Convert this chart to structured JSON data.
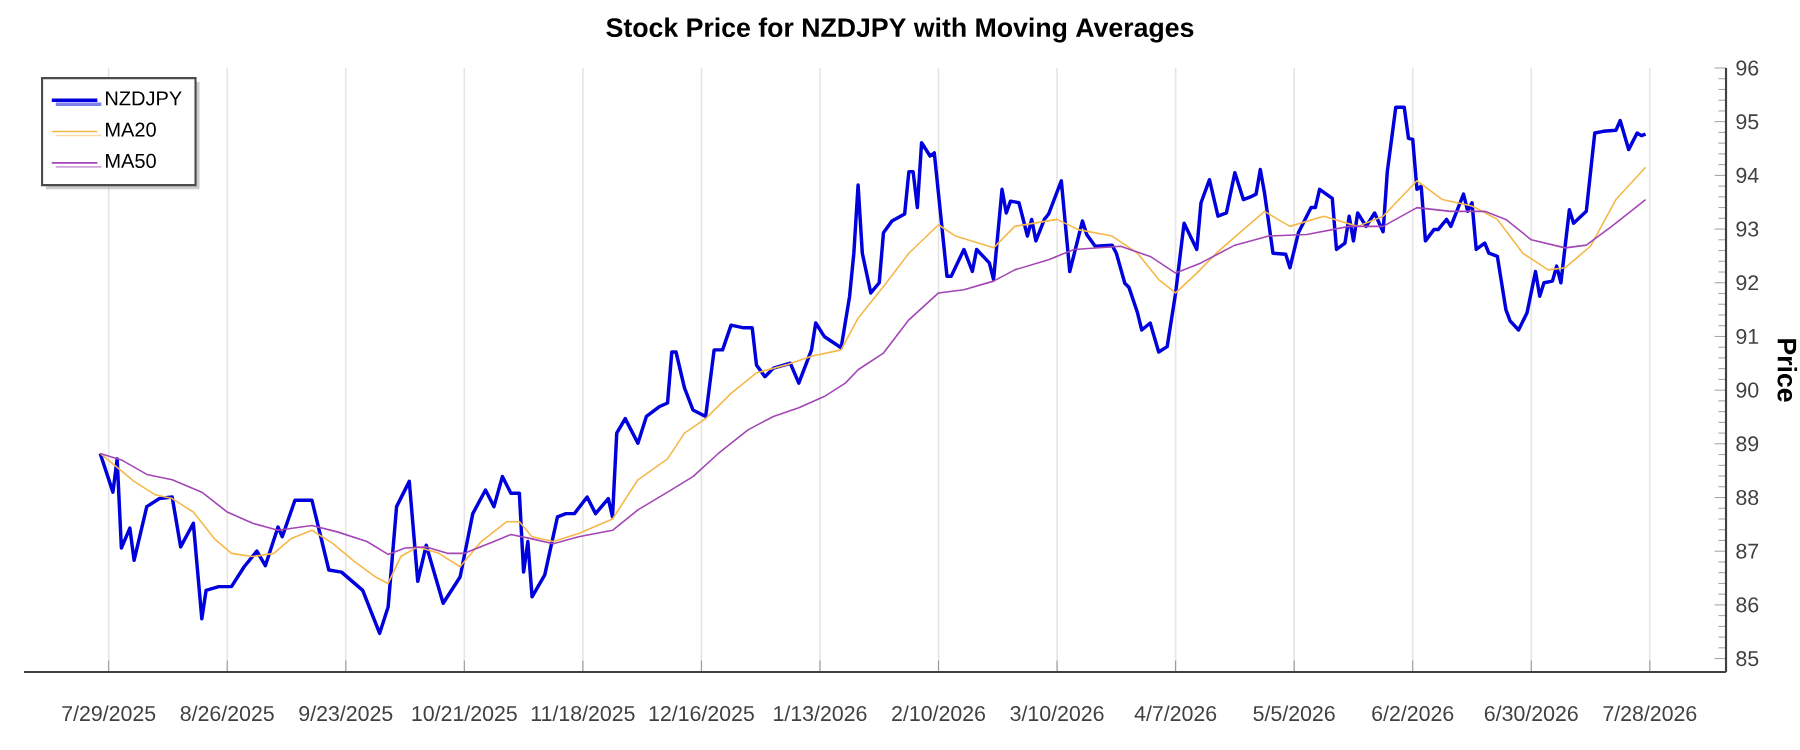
{
  "chart_data": {
    "type": "line",
    "title": "Stock Price for NZDJPY with Moving Averages",
    "ylabel": "Price",
    "xlim": [
      "2025-07-09",
      "2026-08-15"
    ],
    "ylim": [
      84.75,
      96
    ],
    "xticks": [
      {
        "value": "2025-07-29",
        "label": "7/29/2025"
      },
      {
        "value": "2025-08-26",
        "label": "8/26/2025"
      },
      {
        "value": "2025-09-23",
        "label": "9/23/2025"
      },
      {
        "value": "2025-10-21",
        "label": "10/21/2025"
      },
      {
        "value": "2025-11-18",
        "label": "11/18/2025"
      },
      {
        "value": "2025-12-16",
        "label": "12/16/2025"
      },
      {
        "value": "2026-01-13",
        "label": "1/13/2026"
      },
      {
        "value": "2026-02-10",
        "label": "2/10/2026"
      },
      {
        "value": "2026-03-10",
        "label": "3/10/2026"
      },
      {
        "value": "2026-04-07",
        "label": "4/7/2026"
      },
      {
        "value": "2026-05-05",
        "label": "5/5/2026"
      },
      {
        "value": "2026-06-02",
        "label": "6/2/2026"
      },
      {
        "value": "2026-06-30",
        "label": "6/30/2026"
      },
      {
        "value": "2026-07-28",
        "label": "7/28/2026"
      }
    ],
    "yticks": [
      85,
      86,
      87,
      88,
      89,
      90,
      91,
      92,
      93,
      94,
      95,
      96
    ],
    "grid": "x",
    "legend": "top left",
    "series": [
      {
        "name": "NZDJPY",
        "color": "#0000dd",
        "x": [
          "2025-07-27",
          "2025-07-30",
          "2025-07-31",
          "2025-08-01",
          "2025-08-03",
          "2025-08-04",
          "2025-08-07",
          "2025-08-10",
          "2025-08-13",
          "2025-08-15",
          "2025-08-18",
          "2025-08-20",
          "2025-08-21",
          "2025-08-24",
          "2025-08-27",
          "2025-08-30",
          "2025-09-02",
          "2025-09-04",
          "2025-09-07",
          "2025-09-08",
          "2025-09-11",
          "2025-09-15",
          "2025-09-19",
          "2025-09-22",
          "2025-09-27",
          "2025-10-01",
          "2025-10-03",
          "2025-10-05",
          "2025-10-08",
          "2025-10-10",
          "2025-10-12",
          "2025-10-16",
          "2025-10-20",
          "2025-10-23",
          "2025-10-26",
          "2025-10-28",
          "2025-10-30",
          "2025-11-01",
          "2025-11-03",
          "2025-11-04",
          "2025-11-05",
          "2025-11-06",
          "2025-11-09",
          "2025-11-12",
          "2025-11-14",
          "2025-11-16",
          "2025-11-19",
          "2025-11-21",
          "2025-11-24",
          "2025-11-25",
          "2025-11-26",
          "2025-11-28",
          "2025-12-01",
          "2025-12-03",
          "2025-12-06",
          "2025-12-08",
          "2025-12-09",
          "2025-12-10",
          "2025-12-12",
          "2025-12-14",
          "2025-12-17",
          "2025-12-19",
          "2025-12-21",
          "2025-12-23",
          "2025-12-26",
          "2025-12-28",
          "2025-12-29",
          "2025-12-31",
          "2026-01-02",
          "2026-01-06",
          "2026-01-08",
          "2026-01-11",
          "2026-01-12",
          "2026-01-14",
          "2026-01-18",
          "2026-01-20",
          "2026-01-21",
          "2026-01-22",
          "2026-01-23",
          "2026-01-25",
          "2026-01-27",
          "2026-01-28",
          "2026-01-30",
          "2026-02-02",
          "2026-02-03",
          "2026-02-04",
          "2026-02-05",
          "2026-02-06",
          "2026-02-08",
          "2026-02-09",
          "2026-02-12",
          "2026-02-13",
          "2026-02-16",
          "2026-02-18",
          "2026-02-19",
          "2026-02-22",
          "2026-02-23",
          "2026-02-25",
          "2026-02-26",
          "2026-02-27",
          "2026-03-01",
          "2026-03-03",
          "2026-03-04",
          "2026-03-05",
          "2026-03-07",
          "2026-03-08",
          "2026-03-11",
          "2026-03-13",
          "2026-03-16",
          "2026-03-17",
          "2026-03-19",
          "2026-03-23",
          "2026-03-24",
          "2026-03-26",
          "2026-03-27",
          "2026-03-29",
          "2026-03-30",
          "2026-04-01",
          "2026-04-03",
          "2026-04-05",
          "2026-04-07",
          "2026-04-09",
          "2026-04-12",
          "2026-04-13",
          "2026-04-15",
          "2026-04-17",
          "2026-04-19",
          "2026-04-21",
          "2026-04-23",
          "2026-04-25",
          "2026-04-26",
          "2026-04-27",
          "2026-04-28",
          "2026-04-30",
          "2026-05-03",
          "2026-05-04",
          "2026-05-06",
          "2026-05-09",
          "2026-05-10",
          "2026-05-11",
          "2026-05-14",
          "2026-05-15",
          "2026-05-17",
          "2026-05-18",
          "2026-05-19",
          "2026-05-20",
          "2026-05-22",
          "2026-05-24",
          "2026-05-26",
          "2026-05-27",
          "2026-05-29",
          "2026-05-31",
          "2026-06-01",
          "2026-06-02",
          "2026-06-03",
          "2026-06-04",
          "2026-06-05",
          "2026-06-07",
          "2026-06-08",
          "2026-06-10",
          "2026-06-11",
          "2026-06-14",
          "2026-06-15",
          "2026-06-16",
          "2026-06-17",
          "2026-06-19",
          "2026-06-20",
          "2026-06-22",
          "2026-06-24",
          "2026-06-25",
          "2026-06-27",
          "2026-06-29",
          "2026-07-01",
          "2026-07-02",
          "2026-07-03",
          "2026-07-05",
          "2026-07-06",
          "2026-07-07",
          "2026-07-09",
          "2026-07-10",
          "2026-07-13",
          "2026-07-15",
          "2026-07-17",
          "2026-07-20",
          "2026-07-21",
          "2026-07-23",
          "2026-07-25",
          "2026-07-26",
          "2026-07-27"
        ],
        "values": [
          88.82,
          88.1,
          88.72,
          87.06,
          87.43,
          86.83,
          87.83,
          87.98,
          88.01,
          87.08,
          87.52,
          85.74,
          86.27,
          86.34,
          86.34,
          86.71,
          87.0,
          86.73,
          87.45,
          87.27,
          87.95,
          87.95,
          86.65,
          86.61,
          86.27,
          85.47,
          85.96,
          87.83,
          88.3,
          86.44,
          87.11,
          86.03,
          86.52,
          87.7,
          88.14,
          87.83,
          88.39,
          88.08,
          88.08,
          86.61,
          87.18,
          86.15,
          86.56,
          87.64,
          87.7,
          87.7,
          88.01,
          87.7,
          87.98,
          87.64,
          89.2,
          89.47,
          89.01,
          89.51,
          89.69,
          89.76,
          90.71,
          90.71,
          90.04,
          89.63,
          89.51,
          90.75,
          90.75,
          91.21,
          91.16,
          91.16,
          90.47,
          90.25,
          90.41,
          90.5,
          90.13,
          90.75,
          91.25,
          91.0,
          90.79,
          91.75,
          92.55,
          93.82,
          92.55,
          91.81,
          92.0,
          92.93,
          93.15,
          93.28,
          94.07,
          94.07,
          93.4,
          94.61,
          94.36,
          94.42,
          92.12,
          92.12,
          92.62,
          92.21,
          92.62,
          92.37,
          92.06,
          93.74,
          93.3,
          93.52,
          93.49,
          92.87,
          93.18,
          92.78,
          93.18,
          93.28,
          93.9,
          92.21,
          93.15,
          92.9,
          92.68,
          92.7,
          92.55,
          91.99,
          91.91,
          91.44,
          91.12,
          91.25,
          90.71,
          90.81,
          91.81,
          93.11,
          92.62,
          93.49,
          93.92,
          93.24,
          93.3,
          94.05,
          93.55,
          93.61,
          93.65,
          94.11,
          93.67,
          92.55,
          92.53,
          92.28,
          92.93,
          93.4,
          93.4,
          93.74,
          93.57,
          92.62,
          92.74,
          93.24,
          92.78,
          93.3,
          93.05,
          93.3,
          92.95,
          94.07,
          95.27,
          95.27,
          94.69,
          94.67,
          93.74,
          93.8,
          92.78,
          92.99,
          92.99,
          93.18,
          93.05,
          93.65,
          93.33,
          93.49,
          92.62,
          92.74,
          92.55,
          92.49,
          91.5,
          91.29,
          91.12,
          91.44,
          92.21,
          91.75,
          92.0,
          92.03,
          92.31,
          92.0,
          93.36,
          93.11,
          93.33,
          94.79,
          94.82,
          94.84,
          95.02,
          94.48,
          94.79,
          94.74,
          94.77
        ]
      },
      {
        "name": "MA20",
        "color": "#f5b84a",
        "x": [
          "2025-07-27",
          "2025-08-04",
          "2025-08-09",
          "2025-08-13",
          "2025-08-18",
          "2025-08-23",
          "2025-08-27",
          "2025-09-01",
          "2025-09-06",
          "2025-09-10",
          "2025-09-15",
          "2025-09-20",
          "2025-09-25",
          "2025-09-30",
          "2025-10-03",
          "2025-10-06",
          "2025-10-10",
          "2025-10-15",
          "2025-10-20",
          "2025-10-25",
          "2025-10-31",
          "2025-11-03",
          "2025-11-06",
          "2025-11-11",
          "2025-11-17",
          "2025-11-25",
          "2025-12-01",
          "2025-12-08",
          "2025-12-12",
          "2025-12-17",
          "2025-12-23",
          "2025-12-29",
          "2026-01-05",
          "2026-01-11",
          "2026-01-18",
          "2026-01-22",
          "2026-01-28",
          "2026-02-03",
          "2026-02-10",
          "2026-02-14",
          "2026-02-23",
          "2026-02-28",
          "2026-03-10",
          "2026-03-15",
          "2026-03-23",
          "2026-03-29",
          "2026-04-03",
          "2026-04-07",
          "2026-04-12",
          "2026-04-17",
          "2026-04-23",
          "2026-04-28",
          "2026-05-04",
          "2026-05-12",
          "2026-05-20",
          "2026-05-26",
          "2026-06-03",
          "2026-06-09",
          "2026-06-16",
          "2026-06-22",
          "2026-06-28",
          "2026-07-04",
          "2026-07-08",
          "2026-07-14",
          "2026-07-20",
          "2026-07-27"
        ],
        "values": [
          88.82,
          88.3,
          88.05,
          87.98,
          87.73,
          87.23,
          86.96,
          86.9,
          86.96,
          87.23,
          87.39,
          87.14,
          86.81,
          86.52,
          86.4,
          86.9,
          87.08,
          86.96,
          86.71,
          87.18,
          87.55,
          87.55,
          87.27,
          87.18,
          87.33,
          87.6,
          88.33,
          88.72,
          89.2,
          89.47,
          89.94,
          90.32,
          90.47,
          90.63,
          90.75,
          91.34,
          91.93,
          92.55,
          93.08,
          92.87,
          92.65,
          93.05,
          93.18,
          92.99,
          92.87,
          92.55,
          92.06,
          91.81,
          92.18,
          92.58,
          92.99,
          93.33,
          93.05,
          93.24,
          93.05,
          93.24,
          93.9,
          93.55,
          93.43,
          93.18,
          92.55,
          92.24,
          92.28,
          92.68,
          93.55,
          94.15
        ]
      },
      {
        "name": "MA50",
        "color": "#a347b5",
        "x": [
          "2025-07-27",
          "2025-08-01",
          "2025-08-07",
          "2025-08-13",
          "2025-08-20",
          "2025-08-26",
          "2025-09-01",
          "2025-09-07",
          "2025-09-15",
          "2025-09-21",
          "2025-09-28",
          "2025-10-03",
          "2025-10-07",
          "2025-10-12",
          "2025-10-17",
          "2025-10-21",
          "2025-10-28",
          "2025-11-01",
          "2025-11-06",
          "2025-11-11",
          "2025-11-17",
          "2025-11-25",
          "2025-12-01",
          "2025-12-08",
          "2025-12-14",
          "2025-12-20",
          "2025-12-27",
          "2026-01-02",
          "2026-01-08",
          "2026-01-14",
          "2026-01-19",
          "2026-01-22",
          "2026-01-28",
          "2026-02-03",
          "2026-02-10",
          "2026-02-16",
          "2026-02-23",
          "2026-02-28",
          "2026-03-08",
          "2026-03-14",
          "2026-03-25",
          "2026-04-01",
          "2026-04-07",
          "2026-04-13",
          "2026-04-21",
          "2026-04-29",
          "2026-05-08",
          "2026-05-18",
          "2026-05-26",
          "2026-06-03",
          "2026-06-11",
          "2026-06-19",
          "2026-06-24",
          "2026-06-30",
          "2026-07-08",
          "2026-07-13",
          "2026-07-19",
          "2026-07-27"
        ],
        "values": [
          88.82,
          88.7,
          88.43,
          88.33,
          88.1,
          87.73,
          87.52,
          87.39,
          87.48,
          87.36,
          87.18,
          86.94,
          87.06,
          87.08,
          86.96,
          86.96,
          87.18,
          87.31,
          87.23,
          87.14,
          87.27,
          87.39,
          87.77,
          88.1,
          88.39,
          88.82,
          89.26,
          89.51,
          89.67,
          89.88,
          90.13,
          90.38,
          90.69,
          91.31,
          91.81,
          91.87,
          92.03,
          92.24,
          92.43,
          92.62,
          92.68,
          92.49,
          92.18,
          92.37,
          92.7,
          92.87,
          92.9,
          93.05,
          93.05,
          93.4,
          93.33,
          93.33,
          93.18,
          92.8,
          92.65,
          92.7,
          93.05,
          93.55
        ]
      }
    ]
  }
}
